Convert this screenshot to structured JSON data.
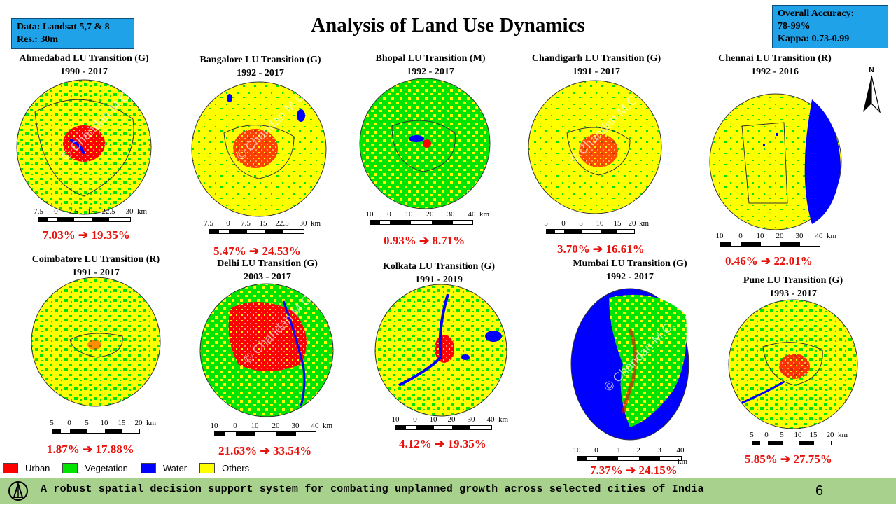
{
  "slide": {
    "title": "Analysis of Land Use Dynamics",
    "data_box": {
      "line1": "Data: Landsat 5,7 & 8",
      "line2": "Res.: 30m"
    },
    "accuracy_box": {
      "line1": "Overall Accuracy:",
      "line2": "78-99%",
      "line3": "Kappa: 0.73-0.99"
    },
    "north_label": "N",
    "watermark": "© Chandan M.C.",
    "footer_text": "A robust spatial decision support system for combating unplanned growth across selected cities of India",
    "page_number": "6"
  },
  "colors": {
    "urban": "#ff0000",
    "vegetation": "#00e400",
    "water": "#0000ff",
    "others": "#ffff00",
    "footer_bg": "#a9d18e",
    "info_box": "#1fa2e8"
  },
  "legend": [
    {
      "label": "Urban",
      "color": "#ff0000"
    },
    {
      "label": "Vegetation",
      "color": "#00e400"
    },
    {
      "label": "Water",
      "color": "#0000ff"
    },
    {
      "label": "Others",
      "color": "#ffff00"
    }
  ],
  "cities": [
    {
      "name": "Ahmedabad  LU Transition  (G)",
      "period": "1990 - 2017",
      "change": "7.03% ➔ 19.35%",
      "scale_labels": [
        "7.5",
        "0",
        "7.5",
        "15",
        "22.5",
        "30"
      ],
      "scale_unit": "km"
    },
    {
      "name": "Bangalore  LU Transition  (G)",
      "period": "1992 - 2017",
      "change": "5.47% ➔ 24.53%",
      "scale_labels": [
        "7.5",
        "0",
        "7.5",
        "15",
        "22.5",
        "30"
      ],
      "scale_unit": "km"
    },
    {
      "name": "Bhopal  LU Transition  (M)",
      "period": "1992 - 2017",
      "change": "0.93% ➔ 8.71%",
      "scale_labels": [
        "10",
        "0",
        "10",
        "20",
        "30",
        "40"
      ],
      "scale_unit": "km"
    },
    {
      "name": "Chandigarh  LU Transition  (G)",
      "period": "1991 - 2017",
      "change": "3.70% ➔ 16.61%",
      "scale_labels": [
        "5",
        "0",
        "5",
        "10",
        "15",
        "20"
      ],
      "scale_unit": "km"
    },
    {
      "name": "Chennai  LU Transition  (R)",
      "period": "1992 - 2016",
      "change": "0.46% ➔ 22.01%",
      "scale_labels": [
        "10",
        "0",
        "10",
        "20",
        "30",
        "40"
      ],
      "scale_unit": "km"
    },
    {
      "name": "Coimbatore  LU Transition  (R)",
      "period": "1991 - 2017",
      "change": "1.87% ➔ 17.88%",
      "scale_labels": [
        "5",
        "0",
        "5",
        "10",
        "15",
        "20"
      ],
      "scale_unit": "km"
    },
    {
      "name": "Delhi LU Transition  (G)",
      "period": "2003 - 2017",
      "change": "21.63% ➔ 33.54%",
      "scale_labels": [
        "10",
        "0",
        "10",
        "20",
        "30",
        "40"
      ],
      "scale_unit": "km"
    },
    {
      "name": "Kolkata  LU Transition  (G)",
      "period": "1991 - 2019",
      "change": "4.12% ➔ 19.35%",
      "scale_labels": [
        "10",
        "0",
        "10",
        "20",
        "30",
        "40"
      ],
      "scale_unit": "km"
    },
    {
      "name": "Mumbai  LU Transition  (G)",
      "period": "1992 - 2017",
      "change": "7.37% ➔ 24.15%",
      "scale_labels": [
        "10",
        "0",
        "1",
        "2",
        "3",
        "40"
      ],
      "scale_unit": "km"
    },
    {
      "name": "Pune  LU Transition  (G)",
      "period": "1993 - 2017",
      "change": "5.85% ➔ 27.75%",
      "scale_labels": [
        "5",
        "0",
        "5",
        "10",
        "15",
        "20"
      ],
      "scale_unit": "km"
    }
  ]
}
